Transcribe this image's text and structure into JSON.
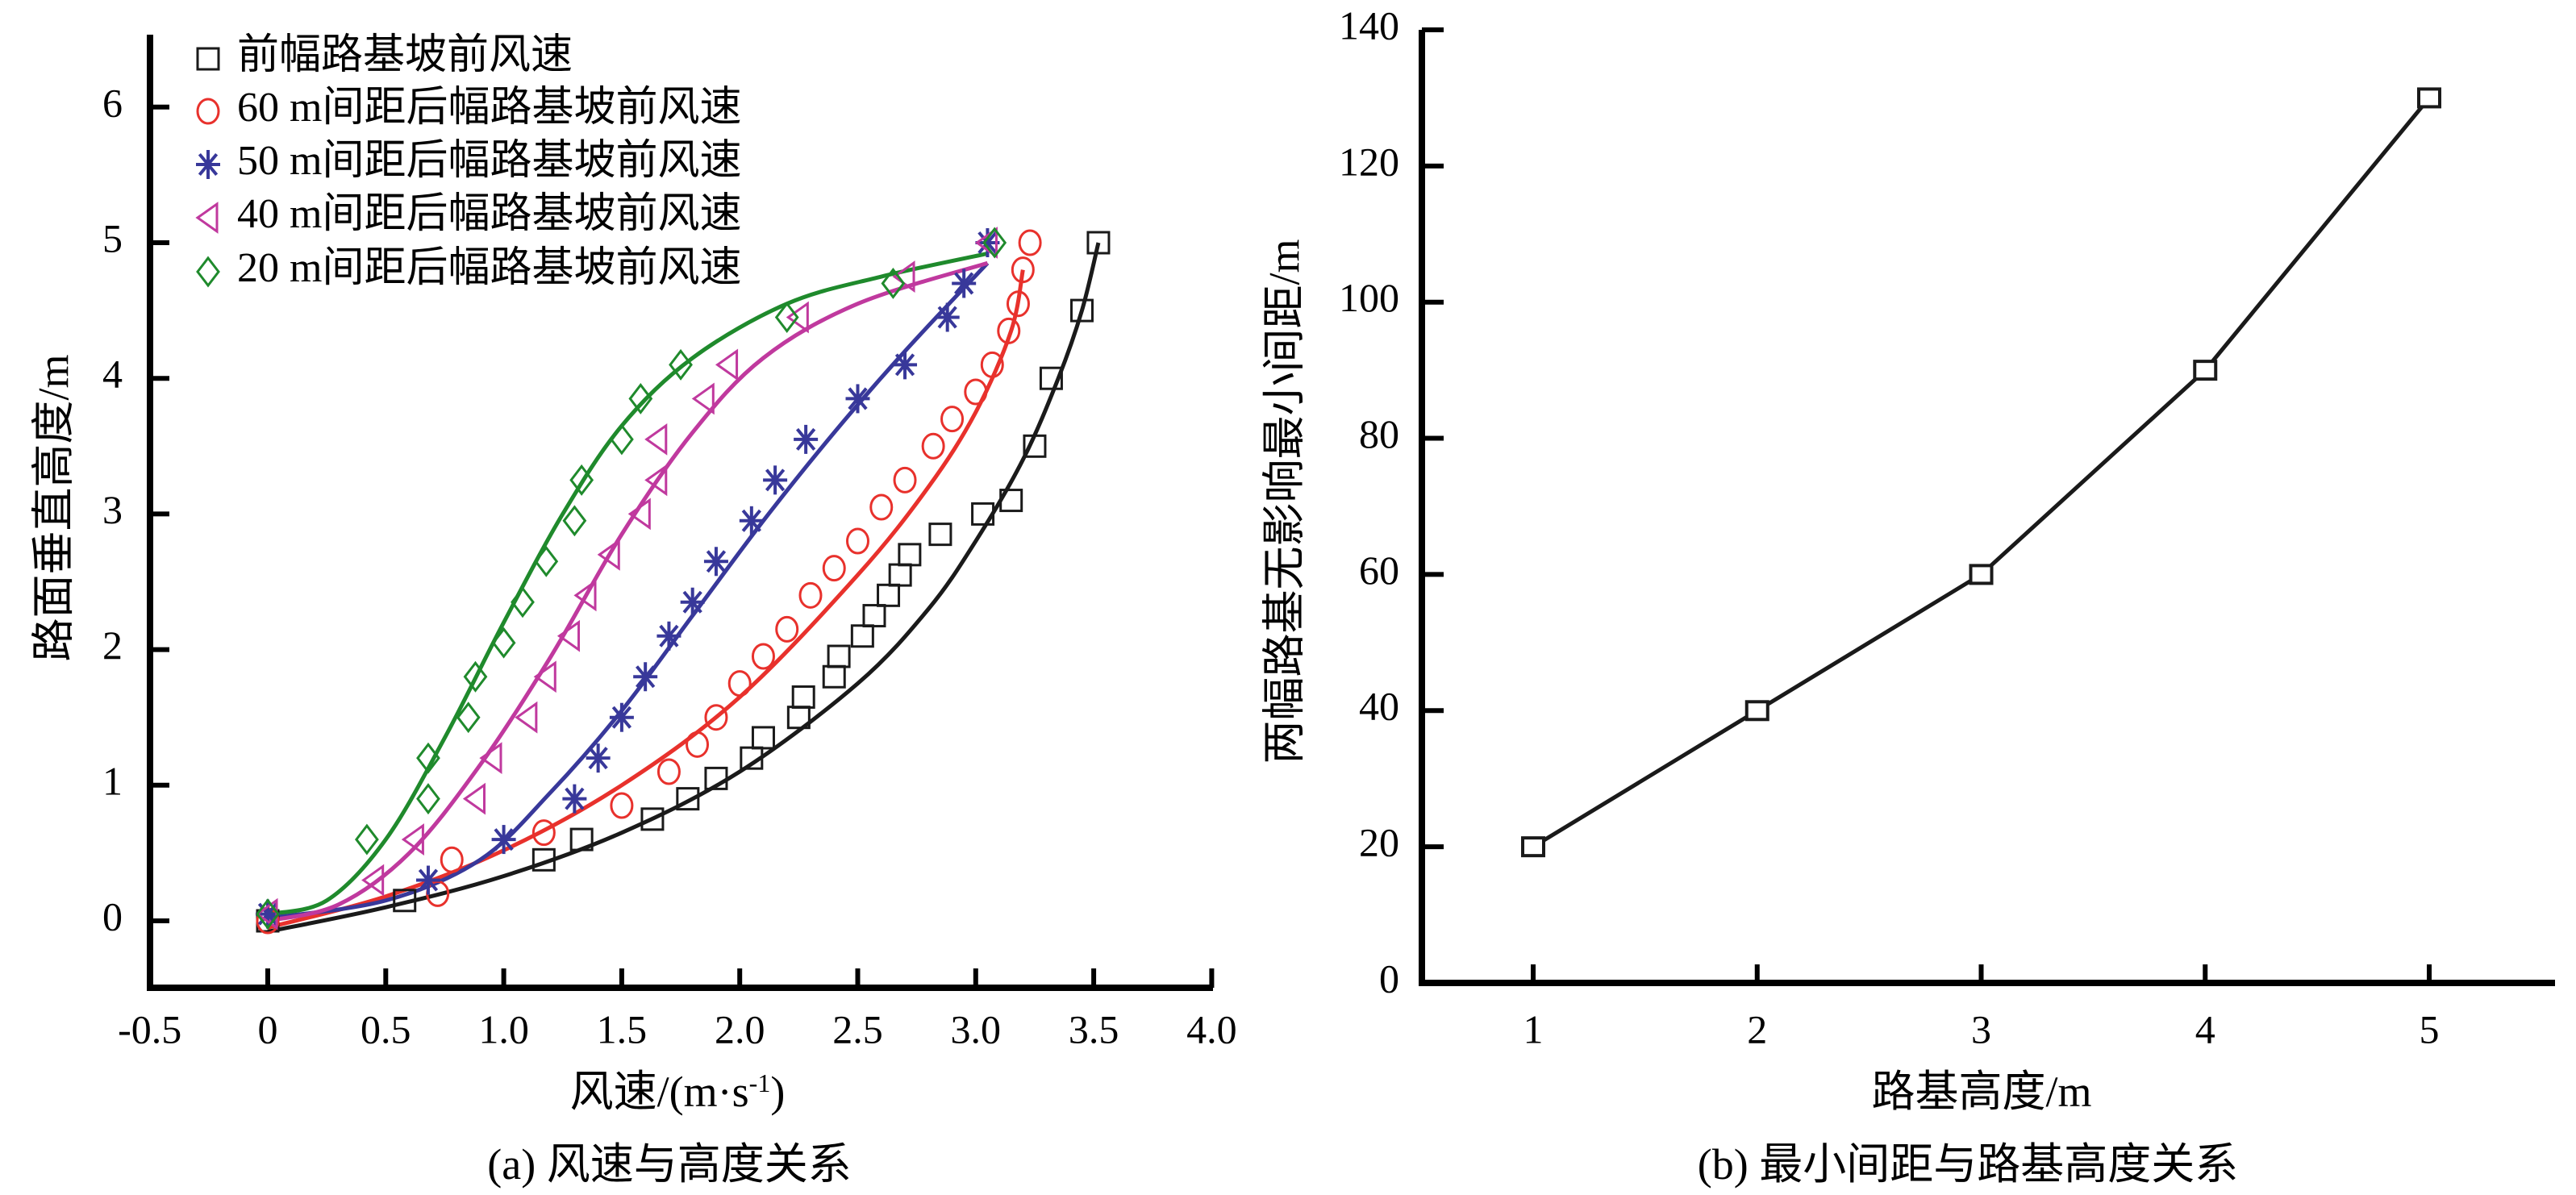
{
  "chart_data": [
    {
      "id": "a",
      "type": "scatter",
      "caption": "(a) 风速与高度关系",
      "xlabel": "风速/(m·s",
      "xlabel_sup": "-1",
      "xlabel_end": ")",
      "ylabel": "路面垂直高度/m",
      "xlim": [
        -0.5,
        4.0
      ],
      "ylim": [
        -0.5,
        6.5
      ],
      "xticks": [
        "-0.5",
        "0",
        "0.5",
        "1.0",
        "1.5",
        "2.0",
        "2.5",
        "3.0",
        "3.5",
        "4.0"
      ],
      "xtick_values": [
        -0.5,
        0,
        0.5,
        1.0,
        1.5,
        2.0,
        2.5,
        3.0,
        3.5,
        4.0
      ],
      "yticks": [
        "0",
        "1",
        "2",
        "3",
        "4",
        "5",
        "6"
      ],
      "ytick_values": [
        0,
        1,
        2,
        3,
        4,
        5,
        6
      ],
      "legend_position": "top-left",
      "series": [
        {
          "name": "前幅路基坡前风速",
          "marker": "square",
          "color": "#1a1a1a",
          "points": [
            [
              0,
              0
            ],
            [
              0.58,
              0.15
            ],
            [
              1.17,
              0.45
            ],
            [
              1.33,
              0.6
            ],
            [
              1.63,
              0.75
            ],
            [
              1.78,
              0.9
            ],
            [
              1.9,
              1.05
            ],
            [
              2.05,
              1.2
            ],
            [
              2.1,
              1.35
            ],
            [
              2.25,
              1.5
            ],
            [
              2.27,
              1.65
            ],
            [
              2.4,
              1.8
            ],
            [
              2.42,
              1.95
            ],
            [
              2.52,
              2.1
            ],
            [
              2.57,
              2.25
            ],
            [
              2.63,
              2.4
            ],
            [
              2.68,
              2.55
            ],
            [
              2.72,
              2.7
            ],
            [
              2.85,
              2.85
            ],
            [
              3.03,
              3.0
            ],
            [
              3.15,
              3.1
            ],
            [
              3.25,
              3.5
            ],
            [
              3.32,
              4.0
            ],
            [
              3.45,
              4.5
            ],
            [
              3.52,
              5.0
            ]
          ],
          "fit": [
            [
              0,
              -0.08
            ],
            [
              0.5,
              0.1
            ],
            [
              1.0,
              0.33
            ],
            [
              1.5,
              0.65
            ],
            [
              2.0,
              1.1
            ],
            [
              2.5,
              1.75
            ],
            [
              2.8,
              2.3
            ],
            [
              3.0,
              2.8
            ],
            [
              3.2,
              3.4
            ],
            [
              3.35,
              4.0
            ],
            [
              3.45,
              4.5
            ],
            [
              3.52,
              5.0
            ]
          ]
        },
        {
          "name": "60 m间距后幅路基坡前风速",
          "marker": "circle",
          "color": "#e8312c",
          "points": [
            [
              0,
              0
            ],
            [
              0.72,
              0.2
            ],
            [
              0.78,
              0.45
            ],
            [
              1.17,
              0.65
            ],
            [
              1.5,
              0.85
            ],
            [
              1.7,
              1.1
            ],
            [
              1.82,
              1.3
            ],
            [
              1.9,
              1.5
            ],
            [
              2.0,
              1.75
            ],
            [
              2.1,
              1.95
            ],
            [
              2.2,
              2.15
            ],
            [
              2.3,
              2.4
            ],
            [
              2.4,
              2.6
            ],
            [
              2.5,
              2.8
            ],
            [
              2.6,
              3.05
            ],
            [
              2.7,
              3.25
            ],
            [
              2.82,
              3.5
            ],
            [
              2.9,
              3.7
            ],
            [
              3.0,
              3.9
            ],
            [
              3.07,
              4.1
            ],
            [
              3.14,
              4.35
            ],
            [
              3.18,
              4.55
            ],
            [
              3.2,
              4.8
            ],
            [
              3.23,
              5.0
            ]
          ],
          "fit": [
            [
              0,
              -0.05
            ],
            [
              0.5,
              0.18
            ],
            [
              1.0,
              0.52
            ],
            [
              1.5,
              1.0
            ],
            [
              2.0,
              1.65
            ],
            [
              2.5,
              2.55
            ],
            [
              2.8,
              3.2
            ],
            [
              3.0,
              3.75
            ],
            [
              3.15,
              4.35
            ],
            [
              3.2,
              4.8
            ]
          ]
        },
        {
          "name": "50 m间距后幅路基坡前风速",
          "marker": "asterisk",
          "color": "#38389a",
          "points": [
            [
              0,
              0.05
            ],
            [
              0.68,
              0.3
            ],
            [
              1.0,
              0.6
            ],
            [
              1.3,
              0.9
            ],
            [
              1.4,
              1.2
            ],
            [
              1.5,
              1.5
            ],
            [
              1.6,
              1.8
            ],
            [
              1.7,
              2.1
            ],
            [
              1.8,
              2.35
            ],
            [
              1.9,
              2.65
            ],
            [
              2.05,
              2.95
            ],
            [
              2.15,
              3.25
            ],
            [
              2.28,
              3.55
            ],
            [
              2.5,
              3.85
            ],
            [
              2.7,
              4.1
            ],
            [
              2.88,
              4.45
            ],
            [
              2.95,
              4.7
            ],
            [
              3.05,
              5.0
            ]
          ],
          "fit": [
            [
              0,
              0.02
            ],
            [
              0.5,
              0.15
            ],
            [
              0.9,
              0.45
            ],
            [
              1.2,
              0.95
            ],
            [
              1.5,
              1.55
            ],
            [
              1.8,
              2.25
            ],
            [
              2.1,
              2.95
            ],
            [
              2.4,
              3.6
            ],
            [
              2.7,
              4.2
            ],
            [
              3.05,
              4.85
            ]
          ]
        },
        {
          "name": "40 m间距后幅路基坡前风速",
          "marker": "triangle-left",
          "color": "#c0399e",
          "points": [
            [
              0,
              0.05
            ],
            [
              0.45,
              0.3
            ],
            [
              0.62,
              0.6
            ],
            [
              0.88,
              0.9
            ],
            [
              0.95,
              1.2
            ],
            [
              1.1,
              1.5
            ],
            [
              1.18,
              1.8
            ],
            [
              1.28,
              2.1
            ],
            [
              1.35,
              2.4
            ],
            [
              1.45,
              2.7
            ],
            [
              1.58,
              3.0
            ],
            [
              1.65,
              3.25
            ],
            [
              1.65,
              3.55
            ],
            [
              1.85,
              3.85
            ],
            [
              1.95,
              4.1
            ],
            [
              2.25,
              4.45
            ],
            [
              2.7,
              4.75
            ],
            [
              3.05,
              5.0
            ]
          ],
          "fit": [
            [
              0,
              0.0
            ],
            [
              0.3,
              0.12
            ],
            [
              0.6,
              0.5
            ],
            [
              0.9,
              1.15
            ],
            [
              1.2,
              1.95
            ],
            [
              1.5,
              2.85
            ],
            [
              1.8,
              3.6
            ],
            [
              2.1,
              4.15
            ],
            [
              2.5,
              4.55
            ],
            [
              3.05,
              4.85
            ]
          ]
        },
        {
          "name": "20 m间距后幅路基坡前风速",
          "marker": "diamond",
          "color": "#1f8a2c",
          "points": [
            [
              0,
              0.05
            ],
            [
              0.42,
              0.6
            ],
            [
              0.68,
              0.9
            ],
            [
              0.68,
              1.2
            ],
            [
              0.85,
              1.5
            ],
            [
              0.88,
              1.8
            ],
            [
              1.0,
              2.05
            ],
            [
              1.08,
              2.35
            ],
            [
              1.18,
              2.65
            ],
            [
              1.3,
              2.95
            ],
            [
              1.33,
              3.25
            ],
            [
              1.5,
              3.55
            ],
            [
              1.58,
              3.85
            ],
            [
              1.75,
              4.1
            ],
            [
              2.2,
              4.45
            ],
            [
              2.65,
              4.7
            ],
            [
              3.08,
              5.0
            ]
          ],
          "fit": [
            [
              0,
              0.05
            ],
            [
              0.25,
              0.15
            ],
            [
              0.5,
              0.6
            ],
            [
              0.75,
              1.35
            ],
            [
              1.0,
              2.2
            ],
            [
              1.25,
              3.0
            ],
            [
              1.5,
              3.65
            ],
            [
              1.8,
              4.15
            ],
            [
              2.2,
              4.55
            ],
            [
              2.6,
              4.75
            ],
            [
              3.05,
              4.92
            ]
          ]
        }
      ]
    },
    {
      "id": "b",
      "type": "line",
      "caption": "(b) 最小间距与路基高度关系",
      "xlabel": "路基高度/m",
      "ylabel": "两幅路基无影响最小间距/m",
      "xlim": [
        0.5,
        5.55
      ],
      "ylim": [
        0,
        140
      ],
      "xticks": [
        "1",
        "2",
        "3",
        "4",
        "5"
      ],
      "xtick_values": [
        1,
        2,
        3,
        4,
        5
      ],
      "yticks": [
        "0",
        "20",
        "40",
        "60",
        "80",
        "100",
        "120",
        "140"
      ],
      "ytick_values": [
        0,
        20,
        40,
        60,
        80,
        100,
        120,
        140
      ],
      "series": [
        {
          "name": "最小间距",
          "marker": "square",
          "color": "#1a1a1a",
          "x": [
            1,
            2,
            3,
            4,
            5
          ],
          "y": [
            20,
            40,
            60,
            90,
            130
          ]
        }
      ]
    }
  ]
}
